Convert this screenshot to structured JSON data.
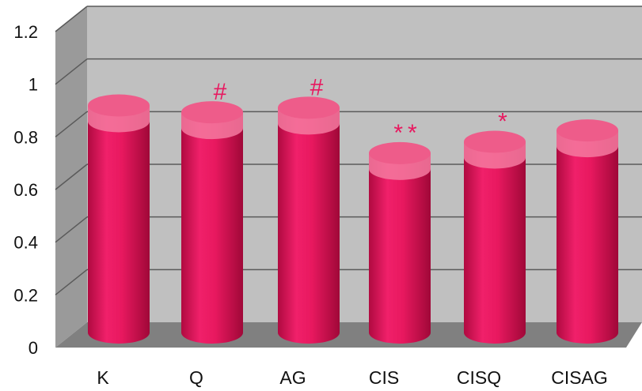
{
  "chart_data": {
    "type": "bar",
    "style": "3d-cylinder",
    "categories": [
      "K",
      "Q",
      "AG",
      "CIS",
      "CISQ",
      "CISAG"
    ],
    "values": [
      1.0,
      0.97,
      0.99,
      0.79,
      0.84,
      0.89
    ],
    "annotations": [
      "",
      "#",
      "#",
      "**",
      "*",
      ""
    ],
    "ylim": [
      0,
      1.2
    ],
    "yticks": [
      "0",
      "0.2",
      "0.4",
      "0.6",
      "0.8",
      "1",
      "1.2"
    ],
    "grid": true,
    "legend": "none",
    "title": "",
    "xlabel": "",
    "ylabel": "",
    "colors": {
      "bar": "#e8185f",
      "bar_dark": "#b00a40",
      "bar_top": "#f47aa0",
      "annotation": "#e8185f",
      "back_wall": "#c0c0c0",
      "side_wall": "#9a9a9a",
      "floor": "#808080",
      "grid": "#5a5a5a"
    }
  }
}
